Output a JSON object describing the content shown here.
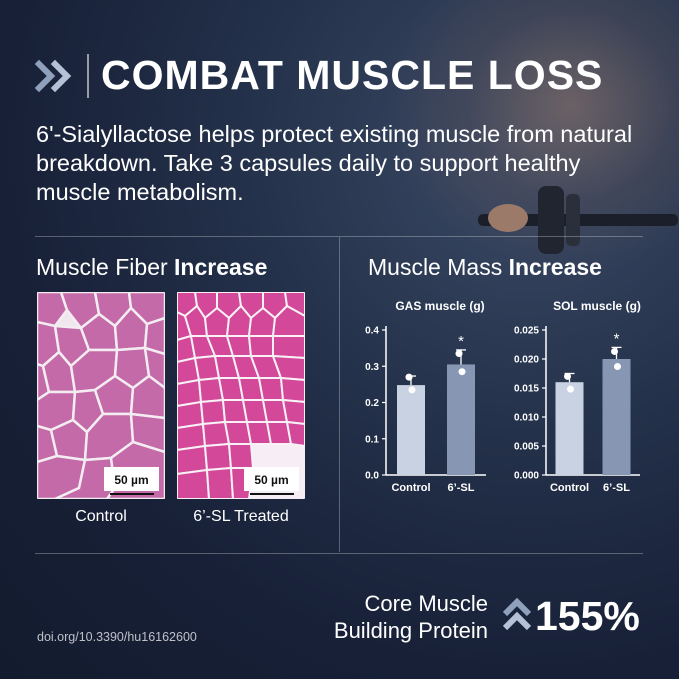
{
  "header": {
    "title": "COMBAT MUSCLE LOSS"
  },
  "intro": "6'-Sialyllactose helps protect existing muscle from natural breakdown. Take 3 capsules daily to support healthy muscle metabolism.",
  "fiber": {
    "title_regular": "Muscle Fiber ",
    "title_bold": "Increase",
    "scale_label": "50 µm",
    "control_label": "Control",
    "treated_label": "6’-SL Treated"
  },
  "mass": {
    "title_regular": "Muscle Mass ",
    "title_bold": "Increase"
  },
  "chart_data": [
    {
      "type": "bar",
      "title": "GAS muscle (g)",
      "categories": [
        "Control",
        "6’-SL"
      ],
      "values": [
        0.248,
        0.305
      ],
      "errors": [
        0.025,
        0.04
      ],
      "points": [
        [
          0.27,
          0.235
        ],
        [
          0.335,
          0.285
        ]
      ],
      "significance": [
        "",
        "*"
      ],
      "ylim": [
        0,
        0.4
      ],
      "yticks": [
        0.0,
        0.1,
        0.2,
        0.3,
        0.4
      ],
      "ytick_labels": [
        "0.0",
        "0.1",
        "0.2",
        "0.3",
        "0.4"
      ],
      "colors": [
        "#c9d2e2",
        "#8797b3"
      ]
    },
    {
      "type": "bar",
      "title": "SOL muscle (g)",
      "categories": [
        "Control",
        "6’-SL"
      ],
      "values": [
        0.016,
        0.02
      ],
      "errors": [
        0.0015,
        0.002
      ],
      "points": [
        [
          0.017,
          0.0148
        ],
        [
          0.0213,
          0.0187
        ]
      ],
      "significance": [
        "",
        "*"
      ],
      "ylim": [
        0,
        0.025
      ],
      "yticks": [
        0.0,
        0.005,
        0.01,
        0.015,
        0.02,
        0.025
      ],
      "ytick_labels": [
        "0.000",
        "0.005",
        "0.010",
        "0.015",
        "0.020",
        "0.025"
      ],
      "colors": [
        "#c9d2e2",
        "#8797b3"
      ]
    }
  ],
  "footer": {
    "source": "doi.org/10.3390/hu16162600",
    "core_line1": "Core Muscle",
    "core_line2": "Building Protein",
    "percent": "155%"
  }
}
